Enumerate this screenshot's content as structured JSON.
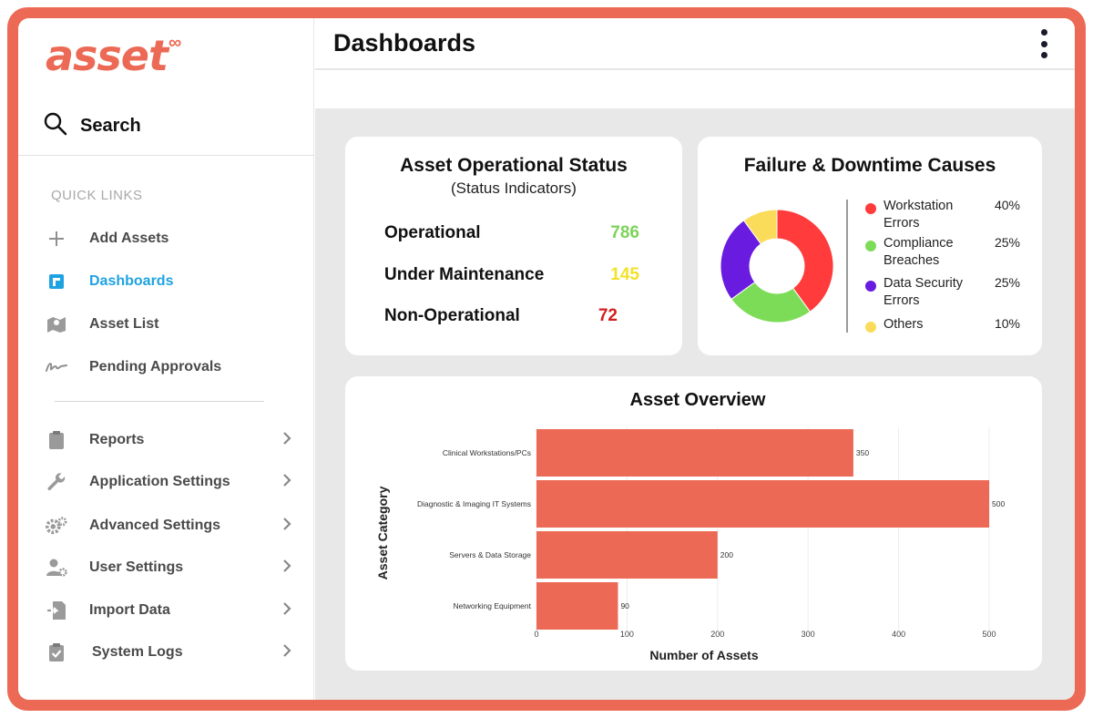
{
  "logo": {
    "text": "asset",
    "symbol": "∞"
  },
  "search": {
    "label": "Search",
    "icon": "search-icon"
  },
  "sidebar": {
    "quick_links_title": "QUICK LINKS",
    "quick_links": [
      {
        "label": "Add Assets",
        "icon": "plus-icon",
        "active": false
      },
      {
        "label": "Dashboards",
        "icon": "dashboard-icon",
        "active": true
      },
      {
        "label": "Asset List",
        "icon": "map-icon",
        "active": false
      },
      {
        "label": "Pending Approvals",
        "icon": "signature-icon",
        "active": false
      }
    ],
    "menu": [
      {
        "label": "Reports",
        "icon": "clipboard-icon"
      },
      {
        "label": "Application Settings",
        "icon": "wrench-icon"
      },
      {
        "label": "Advanced Settings",
        "icon": "gears-icon"
      },
      {
        "label": "User Settings",
        "icon": "user-gear-icon"
      },
      {
        "label": "Import Data",
        "icon": "import-icon"
      },
      {
        "label": "System Logs",
        "icon": "clipboard-check-icon"
      }
    ],
    "active_color": "#1fa3e0"
  },
  "header": {
    "title": "Dashboards",
    "menu_icon": "kebab-menu-icon"
  },
  "status_card": {
    "title": "Asset Operational Status",
    "subtitle": "(Status Indicators)",
    "rows": [
      {
        "label": "Operational",
        "value": "786",
        "color": "#7dd35a"
      },
      {
        "label": "Under Maintenance",
        "value": "145",
        "color": "#f2e22a"
      },
      {
        "label": "Non-Operational",
        "value": "72",
        "color": "#d11f1f"
      }
    ]
  },
  "failure_card": {
    "title": "Failure & Downtime Causes",
    "legend": [
      {
        "label": "Workstation Errors",
        "pct": "40%",
        "color": "#ff3b3b"
      },
      {
        "label": "Compliance Breaches",
        "pct": "25%",
        "color": "#7ddc57"
      },
      {
        "label": "Data Security Errors",
        "pct": "25%",
        "color": "#6a1be0"
      },
      {
        "label": "Others",
        "pct": "10%",
        "color": "#fbdc5a"
      }
    ]
  },
  "chart_data": [
    {
      "type": "pie",
      "title": "Failure & Downtime Causes",
      "donut": true,
      "labels": [
        "Workstation Errors",
        "Compliance Breaches",
        "Data Security Errors",
        "Others"
      ],
      "values": [
        40,
        25,
        25,
        10
      ],
      "colors": [
        "#ff3b3b",
        "#7ddc57",
        "#6a1be0",
        "#fbdc5a"
      ],
      "legend": "right"
    },
    {
      "type": "bar",
      "orientation": "horizontal",
      "title": "Asset Overview",
      "categories": [
        "Clinical Workstations/PCs",
        "Diagnostic & Imaging IT Systems",
        "Servers & Data Storage",
        "Networking Equipment"
      ],
      "values": [
        350,
        500,
        200,
        90
      ],
      "xlabel": "Number of Assets",
      "ylabel": "Asset Category",
      "xlim": [
        0,
        500
      ],
      "xticks": [
        0,
        100,
        200,
        300,
        400,
        500
      ],
      "color": "#ec6a55",
      "grid": true
    }
  ]
}
